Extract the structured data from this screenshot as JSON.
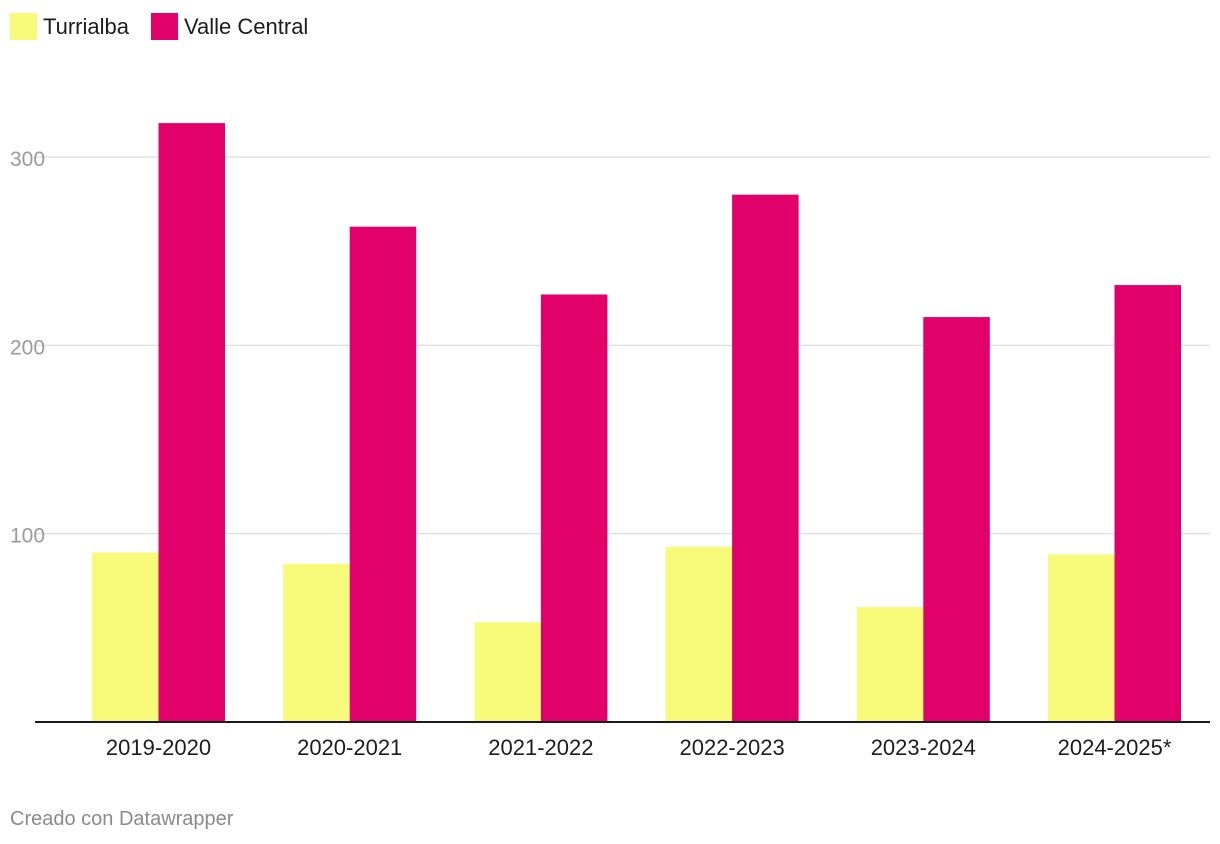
{
  "chart_data": {
    "type": "bar",
    "categories": [
      "2019-2020",
      "2020-2021",
      "2021-2022",
      "2022-2023",
      "2023-2024",
      "2024-2025*"
    ],
    "series": [
      {
        "name": "Turrialba",
        "color": "#f8fa7a",
        "values": [
          90,
          84,
          53,
          93,
          61,
          89
        ]
      },
      {
        "name": "Valle Central",
        "color": "#e2006a",
        "values": [
          318,
          263,
          227,
          280,
          215,
          232
        ]
      }
    ],
    "y_ticks": [
      100,
      200,
      300
    ],
    "ylim": [
      0,
      300
    ],
    "grid": true,
    "legend_position": "top-left"
  },
  "legend": {
    "turrialba_label": "Turrialba",
    "valle_central_label": "Valle Central"
  },
  "footer": {
    "credit": "Creado con Datawrapper"
  }
}
